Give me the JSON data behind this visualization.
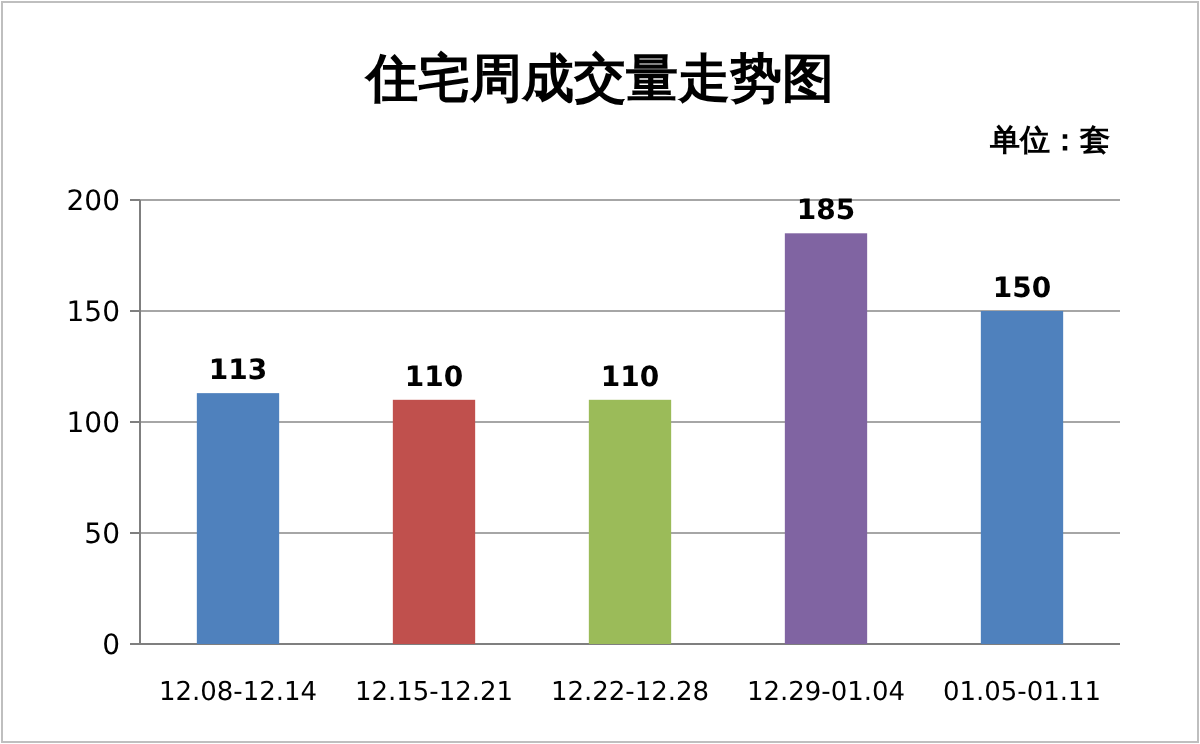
{
  "chart_data": {
    "type": "bar",
    "title": "住宅周成交量走势图",
    "annotations": [
      "单位：套"
    ],
    "categories": [
      "12.08-12.14",
      "12.15-12.21",
      "12.22-12.28",
      "12.29-01.04",
      "01.05-01.11"
    ],
    "values": [
      113,
      110,
      110,
      185,
      150
    ],
    "colors": [
      "#4f81bd",
      "#c0504d",
      "#9bbb59",
      "#8064a2",
      "#4f81bd"
    ],
    "ylim": [
      0,
      200
    ],
    "yticks": [
      0,
      50,
      100,
      150,
      200
    ],
    "grid": "y",
    "data_labels": true
  }
}
